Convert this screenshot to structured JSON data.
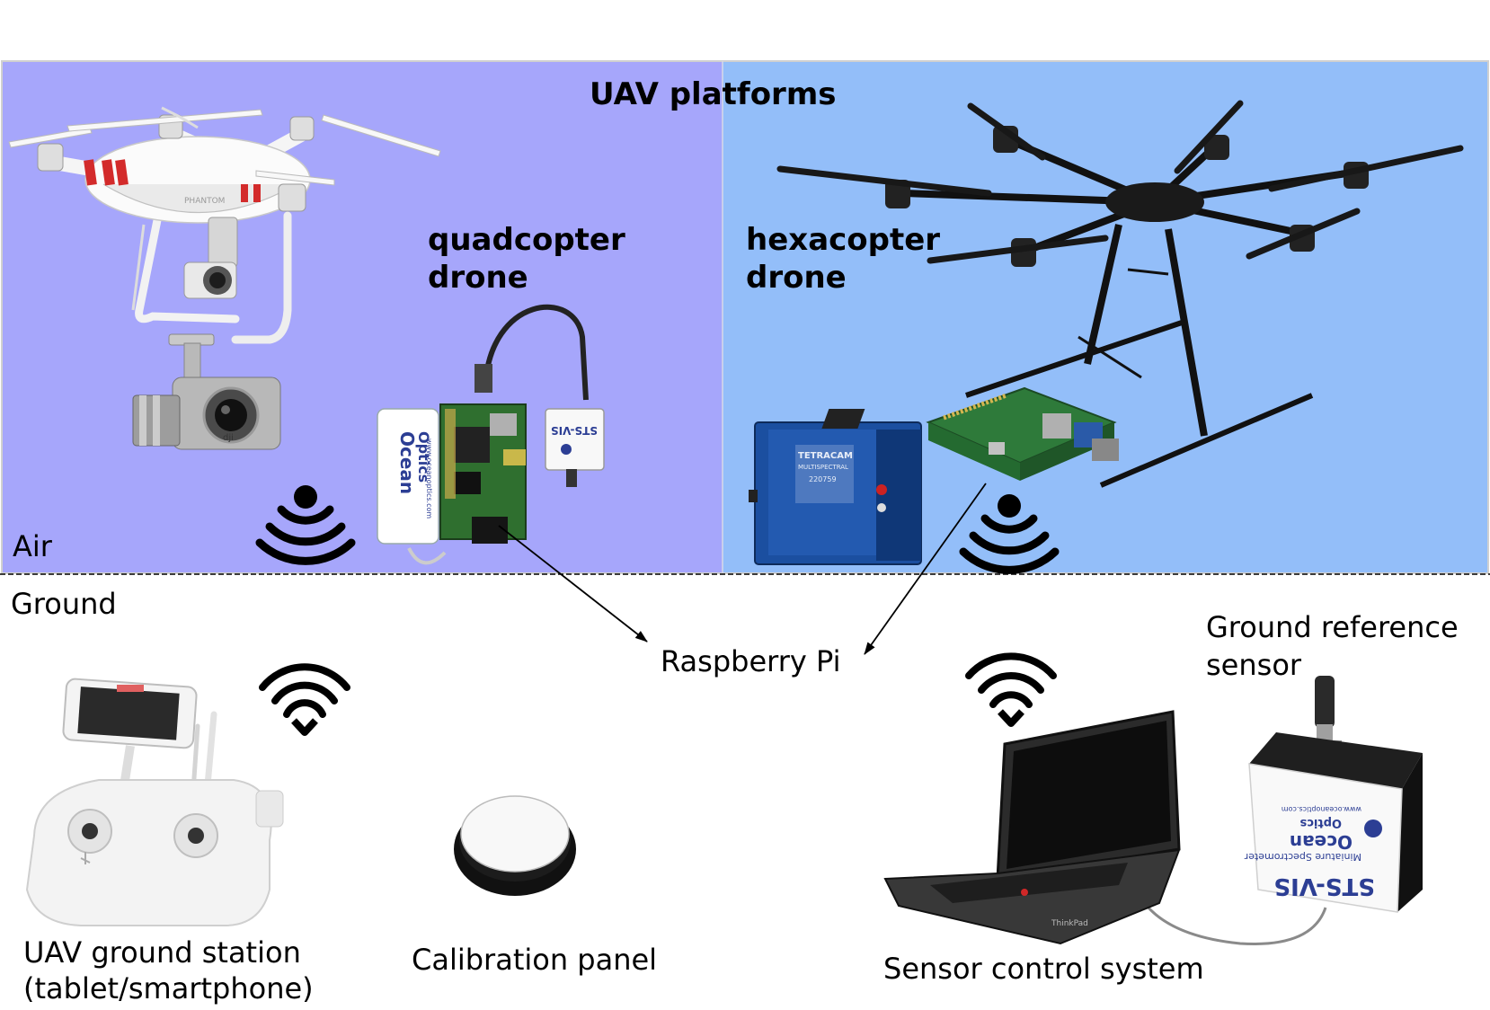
{
  "title": "UAV platforms",
  "zones": {
    "air": "Air",
    "ground": "Ground"
  },
  "air_labels": {
    "quadcopter_line1": "quadcopter",
    "quadcopter_line2": "drone",
    "hexacopter_line1": "hexacopter",
    "hexacopter_line2": "drone"
  },
  "ground_labels": {
    "raspberry_pi": "Raspberry Pi",
    "ground_reference_line1": "Ground reference",
    "ground_reference_line2": "sensor",
    "ground_station_line1": "UAV ground station",
    "ground_station_line2": "(tablet/smartphone)",
    "calibration_panel": "Calibration panel",
    "sensor_control": "Sensor control system"
  },
  "device_text": {
    "ocean_optics_brand_line1": "Ocean",
    "ocean_optics_brand_line2": "Optics",
    "ocean_optics_url": "www.oceanoptics.com",
    "sts_vis": "STS-VIS",
    "miniature_spectrometer": "Miniature Spectrometer",
    "tetracam": "TETRACAM",
    "multispectral": "MULTISPECTRAL",
    "serial": "220759",
    "laptop_brand": "ThinkPad",
    "drone_brand": "PHANTOM",
    "gimbal_brand": "dji"
  },
  "colors": {
    "quadcopter_panel": "#a6a6fb",
    "hexacopter_panel": "#93bef9",
    "divider": "#000000"
  }
}
